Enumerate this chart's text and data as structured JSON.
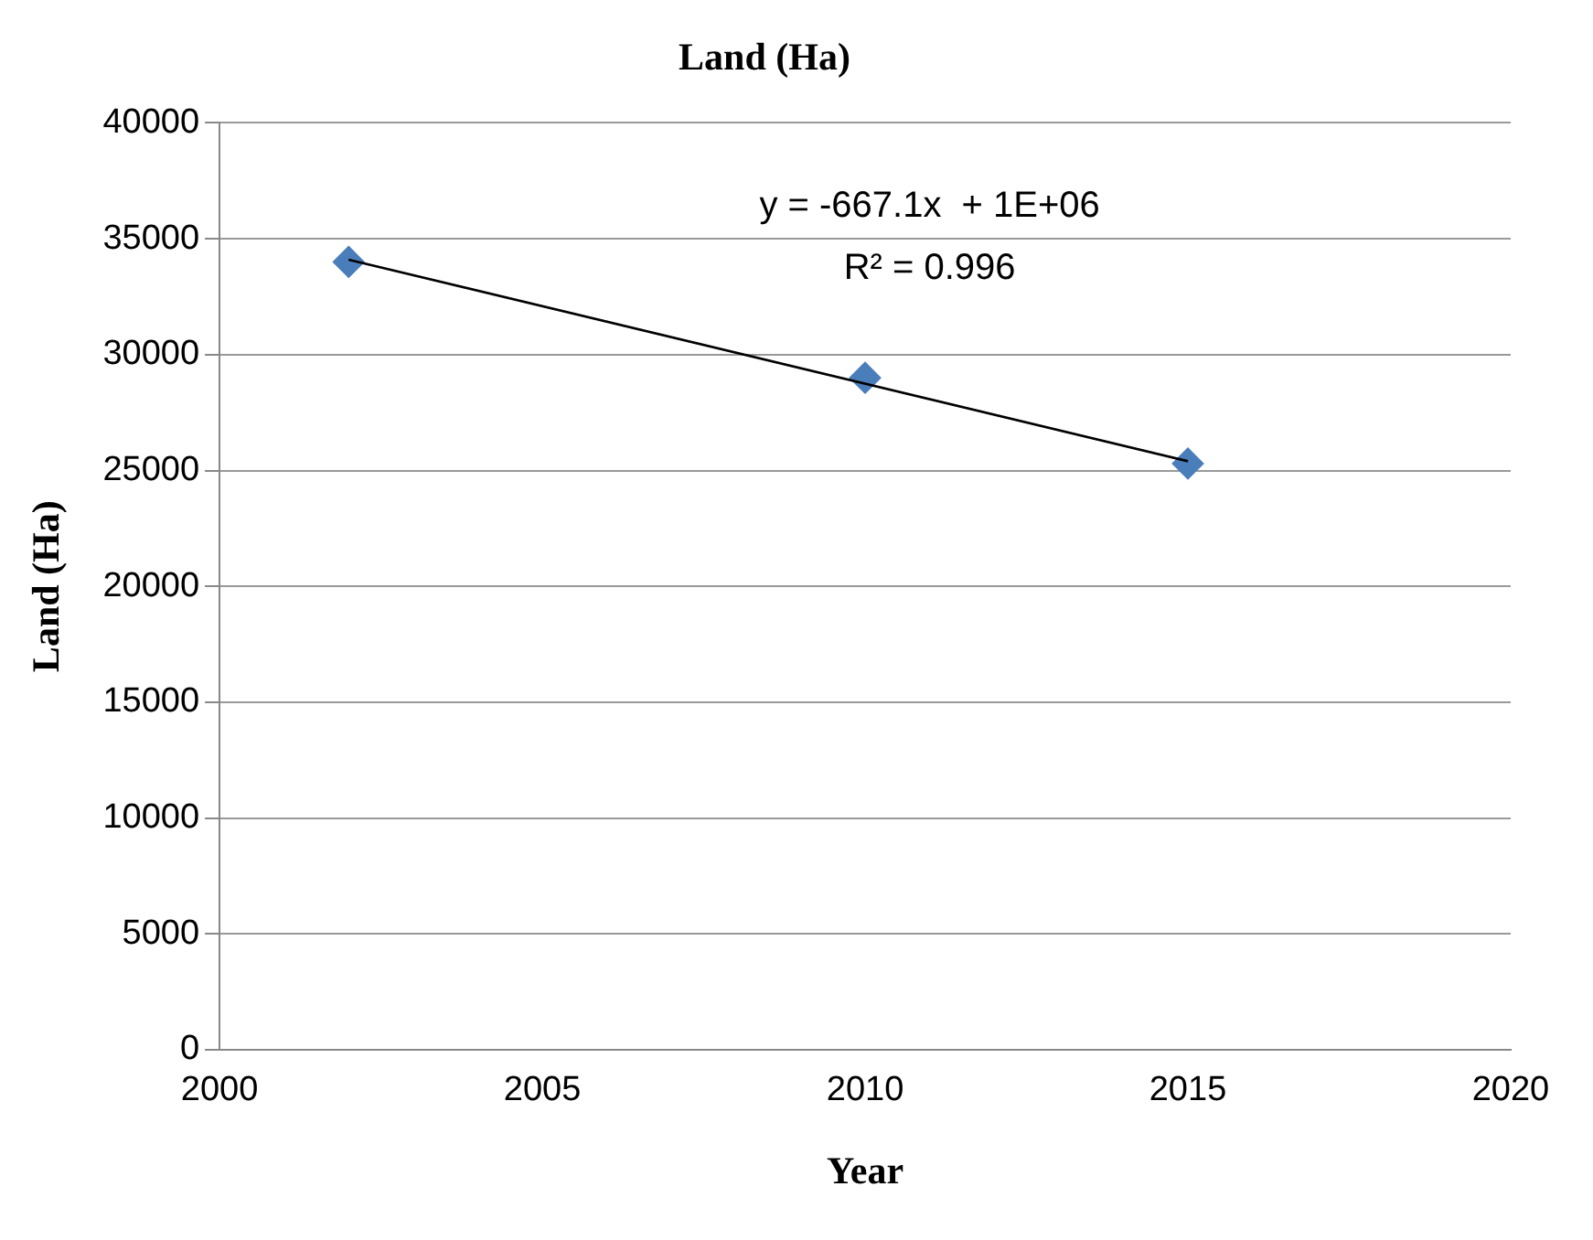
{
  "chart_data": {
    "type": "scatter",
    "title": "Land (Ha)",
    "xlabel": "Year",
    "ylabel": "Land (Ha)",
    "x": [
      2002,
      2010,
      2015
    ],
    "series": [
      {
        "color": "#4a7ebb",
        "values": [
          34000,
          29000,
          25300
        ],
        "marker": "diamond"
      },
      {
        "type": "line",
        "x": [
          2002,
          2015
        ],
        "values": [
          34100,
          25400
        ],
        "color": "#000000",
        "marker": "none"
      }
    ],
    "xlim": [
      2000,
      2020
    ],
    "xticks": [
      2000,
      2005,
      2010,
      2015,
      2020
    ],
    "ylim": [
      0,
      40000
    ],
    "yticks": [
      0,
      5000,
      10000,
      15000,
      20000,
      25000,
      30000,
      35000,
      40000
    ],
    "grid": "y",
    "legend": false,
    "annotations": [
      "y = -667.1x  + 1E+06",
      "R² = 0.996"
    ]
  }
}
